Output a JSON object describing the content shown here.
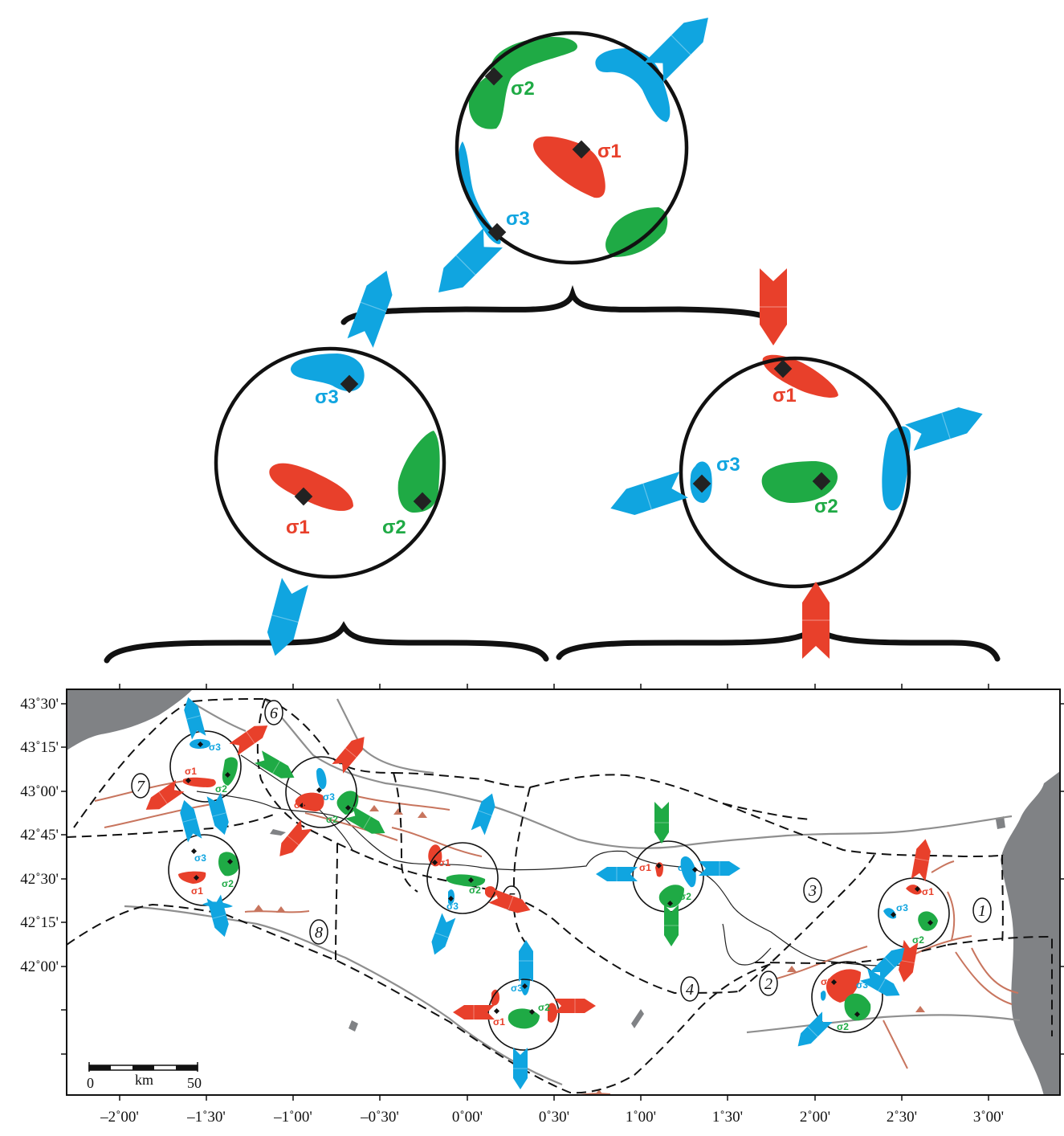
{
  "colors": {
    "sigma1": "#e8402b",
    "sigma2": "#1faa45",
    "sigma3": "#10a5e0",
    "frame": "#111111",
    "sea": "#808285",
    "river": "#8f8f8f",
    "fault": "#c8755e"
  },
  "stereonets": {
    "top": {
      "labels": {
        "s1": "σ1",
        "s2": "σ2",
        "s3": "σ3"
      }
    },
    "left": {
      "labels": {
        "s1": "σ1",
        "s2": "σ2",
        "s3": "σ3"
      }
    },
    "right": {
      "labels": {
        "s1": "σ1",
        "s2": "σ2",
        "s3": "σ3"
      }
    }
  },
  "map": {
    "lat_labels": [
      "43˚30'",
      "43˚15'",
      "43˚00'",
      "42˚45'",
      "42˚30'",
      "42˚15'",
      "42˚00'"
    ],
    "lon_labels": [
      "–2˚00'",
      "–1˚30'",
      "–1˚00'",
      "–0˚30'",
      "0˚00'",
      "0˚30'",
      "1˚00'",
      "1˚30'",
      "2˚00'",
      "2˚30'",
      "3˚00'"
    ],
    "zones": [
      "1",
      "2",
      "3",
      "4",
      "5",
      "6",
      "7",
      "8"
    ],
    "site_labels": {
      "s1": "σ1",
      "s2": "σ2",
      "s3": "σ3"
    },
    "scale_bar": {
      "start": "0",
      "unit": "km",
      "end": "50"
    }
  }
}
